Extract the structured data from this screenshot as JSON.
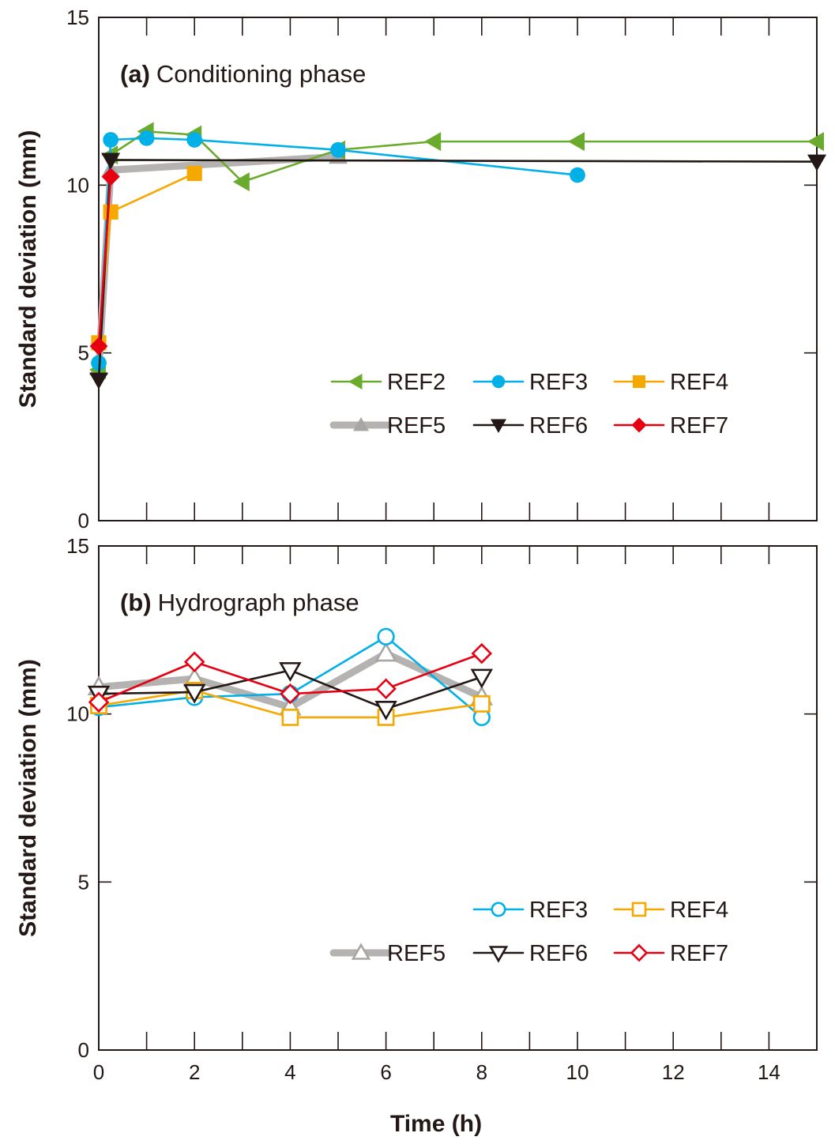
{
  "chart_data": {
    "type": "line",
    "xlabel": "Time (h)",
    "x_ticks": [
      "0",
      "2",
      "4",
      "6",
      "8",
      "10",
      "12",
      "14"
    ],
    "xlim": [
      0,
      15
    ],
    "colors": {
      "REF2": "#6aaa2c",
      "REF3": "#00b0e6",
      "REF4": "#f5a800",
      "REF5": "#b5b3b1",
      "REF6": "#231815",
      "REF7": "#e60012"
    },
    "panels": [
      {
        "id": "a",
        "title_prefix": "(a)",
        "title": "Conditioning phase",
        "ylabel": "Standard deviation (mm)",
        "ylim": [
          0,
          15
        ],
        "y_ticks": [
          "0",
          "5",
          "10",
          "15"
        ],
        "marker_fill": "filled",
        "legend_placement": "lower-right",
        "series": [
          {
            "name": "REF2",
            "marker": "triangle-left",
            "x": [
              0,
              0.25,
              1,
              2,
              3,
              5,
              7,
              10,
              15
            ],
            "y": [
              4.5,
              10.9,
              11.6,
              11.5,
              10.1,
              11.05,
              11.3,
              11.3,
              11.3
            ]
          },
          {
            "name": "REF3",
            "marker": "circle",
            "x": [
              0,
              0.25,
              1,
              2,
              5,
              10
            ],
            "y": [
              4.7,
              11.35,
              11.4,
              11.35,
              11.05,
              10.3
            ]
          },
          {
            "name": "REF4",
            "marker": "square",
            "x": [
              0,
              0.25,
              2
            ],
            "y": [
              5.3,
              9.2,
              10.35
            ]
          },
          {
            "name": "REF5",
            "marker": "triangle-up",
            "x": [
              0,
              0.25,
              5
            ],
            "y": [
              4.55,
              10.45,
              10.85
            ]
          },
          {
            "name": "REF6",
            "marker": "triangle-down",
            "x": [
              0,
              0.25,
              15
            ],
            "y": [
              4.2,
              10.75,
              10.7
            ]
          },
          {
            "name": "REF7",
            "marker": "diamond",
            "x": [
              0,
              0.25
            ],
            "y": [
              5.2,
              10.25
            ]
          }
        ],
        "legend": [
          "REF2",
          "REF3",
          "REF4",
          "REF5",
          "REF6",
          "REF7"
        ]
      },
      {
        "id": "b",
        "title_prefix": "(b)",
        "title": "Hydrograph phase",
        "ylabel": "Standard deviation (mm)",
        "ylim": [
          0,
          15
        ],
        "y_ticks": [
          "0",
          "5",
          "10",
          "15"
        ],
        "marker_fill": "open",
        "legend_placement": "lower-right",
        "series": [
          {
            "name": "REF3",
            "marker": "circle",
            "x": [
              0,
              2,
              4,
              6,
              8
            ],
            "y": [
              10.2,
              10.5,
              10.6,
              12.3,
              9.9
            ]
          },
          {
            "name": "REF4",
            "marker": "square",
            "x": [
              0,
              2,
              4,
              6,
              8
            ],
            "y": [
              10.25,
              10.7,
              9.9,
              9.9,
              10.3
            ]
          },
          {
            "name": "REF5",
            "marker": "triangle-up",
            "x": [
              0,
              2,
              4,
              6,
              8
            ],
            "y": [
              10.8,
              11.05,
              10.2,
              11.8,
              10.5
            ]
          },
          {
            "name": "REF6",
            "marker": "triangle-down",
            "x": [
              0,
              2,
              4,
              6,
              8
            ],
            "y": [
              10.6,
              10.65,
              11.3,
              10.15,
              11.1
            ]
          },
          {
            "name": "REF7",
            "marker": "diamond",
            "x": [
              0,
              2,
              4,
              6,
              8
            ],
            "y": [
              10.35,
              11.55,
              10.6,
              10.75,
              11.8
            ]
          }
        ],
        "legend": [
          "REF3",
          "REF4",
          "REF5",
          "REF6",
          "REF7"
        ]
      }
    ]
  }
}
